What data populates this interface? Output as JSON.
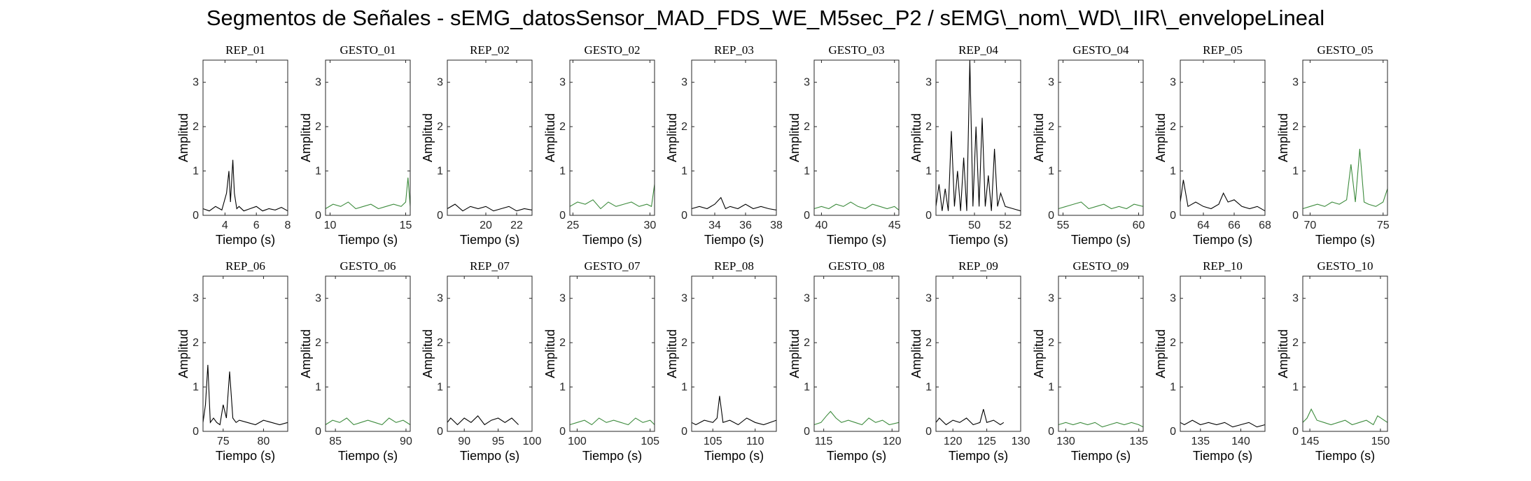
{
  "figure": {
    "title": "Segmentos de Señales - sEMG_datosSensor_MAD_FDS_WE_M5sec_P2 / sEMG\\_nom\\_WD\\_IIR\\_envelopeLineal"
  },
  "colors": {
    "rep": "#000000",
    "gesto": "#3d8b3d",
    "axis": "#262626"
  },
  "chart_data": [
    {
      "type": "line",
      "title": "REP_01",
      "xlabel": "Tiempo (s)",
      "ylabel": "Amplitud",
      "xlim": [
        2.6,
        8
      ],
      "ylim": [
        0,
        3.5
      ],
      "xticks": [
        4,
        6,
        8
      ],
      "yticks": [
        0,
        1,
        2,
        3
      ],
      "series": [
        {
          "name": "REP_01",
          "x": [
            2.6,
            3.0,
            3.4,
            3.8,
            4.1,
            4.25,
            4.35,
            4.5,
            4.6,
            4.75,
            4.9,
            5.2,
            5.6,
            6.0,
            6.4,
            6.8,
            7.2,
            7.6,
            8.0
          ],
          "y": [
            0.15,
            0.1,
            0.2,
            0.12,
            0.5,
            1.0,
            0.3,
            1.25,
            0.5,
            0.15,
            0.2,
            0.1,
            0.15,
            0.2,
            0.1,
            0.15,
            0.12,
            0.18,
            0.1
          ]
        }
      ]
    },
    {
      "type": "line",
      "title": "GESTO_01",
      "xlabel": "Tiempo (s)",
      "ylabel": "Amplitud",
      "xlim": [
        9.7,
        15.3
      ],
      "ylim": [
        0,
        3.5
      ],
      "xticks": [
        10,
        15
      ],
      "yticks": [
        0,
        1,
        2,
        3
      ],
      "series": [
        {
          "name": "GESTO_01",
          "x": [
            9.7,
            10.2,
            10.7,
            11.2,
            11.7,
            12.2,
            12.7,
            13.2,
            13.7,
            14.2,
            14.7,
            15.0,
            15.15,
            15.3
          ],
          "y": [
            0.15,
            0.25,
            0.2,
            0.3,
            0.15,
            0.2,
            0.25,
            0.15,
            0.2,
            0.25,
            0.2,
            0.3,
            0.85,
            0.2
          ]
        }
      ]
    },
    {
      "type": "line",
      "title": "REP_02",
      "xlabel": "Tiempo (s)",
      "ylabel": "Amplitud",
      "xlim": [
        17.5,
        23
      ],
      "ylim": [
        0,
        3.5
      ],
      "xticks": [
        20,
        22
      ],
      "yticks": [
        0,
        1,
        2,
        3
      ],
      "series": [
        {
          "name": "REP_02",
          "x": [
            17.5,
            18,
            18.5,
            19,
            19.5,
            20,
            20.5,
            21,
            21.5,
            22,
            22.5,
            23
          ],
          "y": [
            0.15,
            0.25,
            0.1,
            0.2,
            0.15,
            0.2,
            0.1,
            0.15,
            0.2,
            0.1,
            0.15,
            0.12
          ]
        }
      ]
    },
    {
      "type": "line",
      "title": "GESTO_02",
      "xlabel": "Tiempo (s)",
      "ylabel": "Amplitud",
      "xlim": [
        24.8,
        30.3
      ],
      "ylim": [
        0,
        3.5
      ],
      "xticks": [
        25,
        30
      ],
      "yticks": [
        0,
        1,
        2,
        3
      ],
      "series": [
        {
          "name": "GESTO_02",
          "x": [
            24.8,
            25.3,
            25.8,
            26.3,
            26.8,
            27.3,
            27.8,
            28.3,
            28.8,
            29.3,
            29.8,
            30.1,
            30.3
          ],
          "y": [
            0.2,
            0.3,
            0.25,
            0.35,
            0.15,
            0.3,
            0.2,
            0.25,
            0.3,
            0.2,
            0.25,
            0.2,
            0.7
          ]
        }
      ]
    },
    {
      "type": "line",
      "title": "REP_03",
      "xlabel": "Tiempo (s)",
      "ylabel": "Amplitud",
      "xlim": [
        32.5,
        38
      ],
      "ylim": [
        0,
        3.5
      ],
      "xticks": [
        34,
        36,
        38
      ],
      "yticks": [
        0,
        1,
        2,
        3
      ],
      "series": [
        {
          "name": "REP_03",
          "x": [
            32.5,
            33,
            33.5,
            34,
            34.4,
            34.7,
            35,
            35.5,
            36,
            36.5,
            37,
            37.5,
            38
          ],
          "y": [
            0.15,
            0.2,
            0.15,
            0.25,
            0.4,
            0.15,
            0.2,
            0.15,
            0.25,
            0.15,
            0.2,
            0.15,
            0.12
          ]
        }
      ]
    },
    {
      "type": "line",
      "title": "GESTO_03",
      "xlabel": "Tiempo (s)",
      "ylabel": "Amplitud",
      "xlim": [
        39.5,
        45.3
      ],
      "ylim": [
        0,
        3.5
      ],
      "xticks": [
        40,
        45
      ],
      "yticks": [
        0,
        1,
        2,
        3
      ],
      "series": [
        {
          "name": "GESTO_03",
          "x": [
            39.5,
            40,
            40.5,
            41,
            41.5,
            42,
            42.5,
            43,
            43.5,
            44,
            44.5,
            45,
            45.3
          ],
          "y": [
            0.15,
            0.2,
            0.15,
            0.25,
            0.2,
            0.3,
            0.2,
            0.15,
            0.25,
            0.2,
            0.15,
            0.2,
            0.12
          ]
        }
      ]
    },
    {
      "type": "line",
      "title": "REP_04",
      "xlabel": "Tiempo (s)",
      "ylabel": "Amplitud",
      "xlim": [
        47.5,
        53
      ],
      "ylim": [
        0,
        3.5
      ],
      "xticks": [
        50,
        52
      ],
      "yticks": [
        0,
        1,
        2,
        3
      ],
      "series": [
        {
          "name": "REP_04",
          "x": [
            47.5,
            47.7,
            47.9,
            48.1,
            48.3,
            48.5,
            48.7,
            48.9,
            49.1,
            49.3,
            49.5,
            49.7,
            49.9,
            50.1,
            50.3,
            50.5,
            50.7,
            50.9,
            51.1,
            51.3,
            51.5,
            51.7,
            52.0,
            52.5,
            53.0
          ],
          "y": [
            0.2,
            0.7,
            0.1,
            0.6,
            0.1,
            1.9,
            0.2,
            1.0,
            0.1,
            1.3,
            0.1,
            3.5,
            0.2,
            2.0,
            0.2,
            2.2,
            0.2,
            0.9,
            0.1,
            1.5,
            0.2,
            0.5,
            0.2,
            0.15,
            0.1
          ]
        }
      ]
    },
    {
      "type": "line",
      "title": "GESTO_04",
      "xlabel": "Tiempo (s)",
      "ylabel": "Amplitud",
      "xlim": [
        54.7,
        60.3
      ],
      "ylim": [
        0,
        3.5
      ],
      "xticks": [
        55,
        60
      ],
      "yticks": [
        0,
        1,
        2,
        3
      ],
      "series": [
        {
          "name": "GESTO_04",
          "x": [
            54.7,
            55.2,
            55.7,
            56.2,
            56.7,
            57.2,
            57.7,
            58.2,
            58.7,
            59.2,
            59.7,
            60.3
          ],
          "y": [
            0.15,
            0.2,
            0.25,
            0.3,
            0.15,
            0.2,
            0.25,
            0.15,
            0.2,
            0.15,
            0.25,
            0.2
          ]
        }
      ]
    },
    {
      "type": "line",
      "title": "REP_05",
      "xlabel": "Tiempo (s)",
      "ylabel": "Amplitud",
      "xlim": [
        62.5,
        68
      ],
      "ylim": [
        0,
        3.5
      ],
      "xticks": [
        64,
        66,
        68
      ],
      "yticks": [
        0,
        1,
        2,
        3
      ],
      "series": [
        {
          "name": "REP_05",
          "x": [
            62.5,
            62.7,
            63,
            63.5,
            64,
            64.5,
            65,
            65.3,
            65.6,
            66,
            66.5,
            67,
            67.5,
            68
          ],
          "y": [
            0.3,
            0.8,
            0.2,
            0.3,
            0.2,
            0.15,
            0.25,
            0.5,
            0.3,
            0.35,
            0.2,
            0.15,
            0.2,
            0.1
          ]
        }
      ]
    },
    {
      "type": "line",
      "title": "GESTO_05",
      "xlabel": "Tiempo (s)",
      "ylabel": "Amplitud",
      "xlim": [
        69.5,
        75.3
      ],
      "ylim": [
        0,
        3.5
      ],
      "xticks": [
        70,
        75
      ],
      "yticks": [
        0,
        1,
        2,
        3
      ],
      "series": [
        {
          "name": "GESTO_05",
          "x": [
            69.5,
            70,
            70.5,
            71,
            71.5,
            72,
            72.5,
            72.8,
            73.1,
            73.4,
            73.7,
            74,
            74.5,
            75,
            75.3
          ],
          "y": [
            0.15,
            0.2,
            0.25,
            0.2,
            0.3,
            0.25,
            0.35,
            1.15,
            0.3,
            1.5,
            0.3,
            0.25,
            0.2,
            0.3,
            0.6
          ]
        }
      ]
    },
    {
      "type": "line",
      "title": "REP_06",
      "xlabel": "Tiempo (s)",
      "ylabel": "Amplitud",
      "xlim": [
        72.5,
        83
      ],
      "ylim": [
        0,
        3.5
      ],
      "xticks": [
        75,
        80
      ],
      "yticks": [
        0,
        1,
        2,
        3
      ],
      "series": [
        {
          "name": "REP_06",
          "x": [
            72.5,
            72.8,
            73.1,
            73.4,
            73.8,
            74.2,
            74.6,
            75,
            75.4,
            75.8,
            76.2,
            76.6,
            77,
            78,
            79,
            80,
            81,
            82,
            83
          ],
          "y": [
            0.2,
            0.6,
            1.5,
            0.2,
            0.3,
            0.2,
            0.15,
            0.6,
            0.3,
            1.35,
            0.3,
            0.2,
            0.25,
            0.2,
            0.15,
            0.25,
            0.2,
            0.15,
            0.2
          ]
        }
      ]
    },
    {
      "type": "line",
      "title": "GESTO_06",
      "xlabel": "Tiempo (s)",
      "ylabel": "Amplitud",
      "xlim": [
        84.3,
        90.3
      ],
      "ylim": [
        0,
        3.5
      ],
      "xticks": [
        85,
        90
      ],
      "yticks": [
        0,
        1,
        2,
        3
      ],
      "series": [
        {
          "name": "GESTO_06",
          "x": [
            84.3,
            84.8,
            85.3,
            85.8,
            86.3,
            86.8,
            87.3,
            87.8,
            88.3,
            88.8,
            89.3,
            89.8,
            90.3
          ],
          "y": [
            0.15,
            0.25,
            0.2,
            0.3,
            0.15,
            0.2,
            0.25,
            0.2,
            0.15,
            0.3,
            0.2,
            0.25,
            0.15
          ]
        }
      ]
    },
    {
      "type": "line",
      "title": "REP_07",
      "xlabel": "Tiempo (s)",
      "ylabel": "Amplitud",
      "xlim": [
        87.5,
        100
      ],
      "ylim": [
        0,
        3.5
      ],
      "xticks": [
        90,
        95,
        100
      ],
      "yticks": [
        0,
        1,
        2,
        3
      ],
      "series": [
        {
          "name": "REP_07",
          "x": [
            87.5,
            88,
            89,
            90,
            91,
            92,
            93,
            94,
            95,
            96,
            97,
            98
          ],
          "y": [
            0.2,
            0.3,
            0.15,
            0.3,
            0.2,
            0.35,
            0.15,
            0.25,
            0.3,
            0.2,
            0.3,
            0.15
          ]
        }
      ]
    },
    {
      "type": "line",
      "title": "GESTO_07",
      "xlabel": "Tiempo (s)",
      "ylabel": "Amplitud",
      "xlim": [
        99.5,
        105.3
      ],
      "ylim": [
        0,
        3.5
      ],
      "xticks": [
        100,
        105
      ],
      "yticks": [
        0,
        1,
        2,
        3
      ],
      "series": [
        {
          "name": "GESTO_07",
          "x": [
            99.5,
            100,
            100.5,
            101,
            101.5,
            102,
            102.5,
            103,
            103.5,
            104,
            104.5,
            105,
            105.3
          ],
          "y": [
            0.15,
            0.2,
            0.25,
            0.15,
            0.3,
            0.2,
            0.25,
            0.2,
            0.15,
            0.3,
            0.2,
            0.25,
            0.15
          ]
        }
      ]
    },
    {
      "type": "line",
      "title": "REP_08",
      "xlabel": "Tiempo (s)",
      "ylabel": "Amplitud",
      "xlim": [
        102.5,
        112.5
      ],
      "ylim": [
        0,
        3.5
      ],
      "xticks": [
        105,
        110
      ],
      "yticks": [
        0,
        1,
        2,
        3
      ],
      "series": [
        {
          "name": "REP_08",
          "x": [
            102.5,
            103,
            104,
            105,
            105.5,
            105.8,
            106.2,
            107,
            108,
            109,
            110,
            111,
            112.5
          ],
          "y": [
            0.2,
            0.15,
            0.25,
            0.2,
            0.3,
            0.8,
            0.2,
            0.25,
            0.15,
            0.3,
            0.2,
            0.15,
            0.25
          ]
        }
      ]
    },
    {
      "type": "line",
      "title": "GESTO_08",
      "xlabel": "Tiempo (s)",
      "ylabel": "Amplitud",
      "xlim": [
        114.3,
        120.5
      ],
      "ylim": [
        0,
        3.5
      ],
      "xticks": [
        115,
        120
      ],
      "yticks": [
        0,
        1,
        2,
        3
      ],
      "series": [
        {
          "name": "GESTO_08",
          "x": [
            114.3,
            114.8,
            115.2,
            115.5,
            115.9,
            116.3,
            116.8,
            117.3,
            117.8,
            118.3,
            118.8,
            119.3,
            119.8,
            120.5
          ],
          "y": [
            0.15,
            0.2,
            0.35,
            0.45,
            0.3,
            0.2,
            0.25,
            0.2,
            0.15,
            0.3,
            0.2,
            0.25,
            0.15,
            0.2
          ]
        }
      ]
    },
    {
      "type": "line",
      "title": "REP_09",
      "xlabel": "Tiempo (s)",
      "ylabel": "Amplitud",
      "xlim": [
        117.5,
        130
      ],
      "ylim": [
        0,
        3.5
      ],
      "xticks": [
        120,
        125,
        130
      ],
      "yticks": [
        0,
        1,
        2,
        3
      ],
      "series": [
        {
          "name": "REP_09",
          "x": [
            117.5,
            118,
            119,
            120,
            121,
            122,
            123,
            124,
            124.5,
            125,
            126,
            127,
            127.5
          ],
          "y": [
            0.2,
            0.3,
            0.15,
            0.25,
            0.2,
            0.3,
            0.15,
            0.2,
            0.5,
            0.2,
            0.25,
            0.15,
            0.2
          ]
        }
      ]
    },
    {
      "type": "line",
      "title": "GESTO_09",
      "xlabel": "Tiempo (s)",
      "ylabel": "Amplitud",
      "xlim": [
        129.5,
        135.3
      ],
      "ylim": [
        0,
        3.5
      ],
      "xticks": [
        130,
        135
      ],
      "yticks": [
        0,
        1,
        2,
        3
      ],
      "series": [
        {
          "name": "GESTO_09",
          "x": [
            129.5,
            130,
            130.5,
            131,
            131.5,
            132,
            132.5,
            133,
            133.5,
            134,
            134.5,
            135,
            135.3
          ],
          "y": [
            0.15,
            0.2,
            0.15,
            0.2,
            0.15,
            0.2,
            0.1,
            0.15,
            0.2,
            0.15,
            0.2,
            0.15,
            0.1
          ]
        }
      ]
    },
    {
      "type": "line",
      "title": "REP_10",
      "xlabel": "Tiempo (s)",
      "ylabel": "Amplitud",
      "xlim": [
        132.5,
        143
      ],
      "ylim": [
        0,
        3.5
      ],
      "xticks": [
        135,
        140
      ],
      "yticks": [
        0,
        1,
        2,
        3
      ],
      "series": [
        {
          "name": "REP_10",
          "x": [
            132.5,
            133,
            134,
            135,
            136,
            137,
            138,
            139,
            140,
            141,
            142,
            143
          ],
          "y": [
            0.2,
            0.15,
            0.25,
            0.15,
            0.2,
            0.15,
            0.2,
            0.1,
            0.15,
            0.2,
            0.1,
            0.15
          ]
        }
      ]
    },
    {
      "type": "line",
      "title": "GESTO_10",
      "xlabel": "Tiempo (s)",
      "ylabel": "Amplitud",
      "xlim": [
        144.5,
        150.5
      ],
      "ylim": [
        0,
        3.5
      ],
      "xticks": [
        145,
        150
      ],
      "yticks": [
        0,
        1,
        2,
        3
      ],
      "series": [
        {
          "name": "GESTO_10",
          "x": [
            144.5,
            144.8,
            145.1,
            145.5,
            146,
            146.5,
            147,
            147.5,
            148,
            148.5,
            149,
            149.5,
            149.8,
            150.5
          ],
          "y": [
            0.2,
            0.3,
            0.5,
            0.25,
            0.2,
            0.15,
            0.2,
            0.25,
            0.15,
            0.2,
            0.25,
            0.15,
            0.35,
            0.2
          ]
        }
      ]
    }
  ]
}
